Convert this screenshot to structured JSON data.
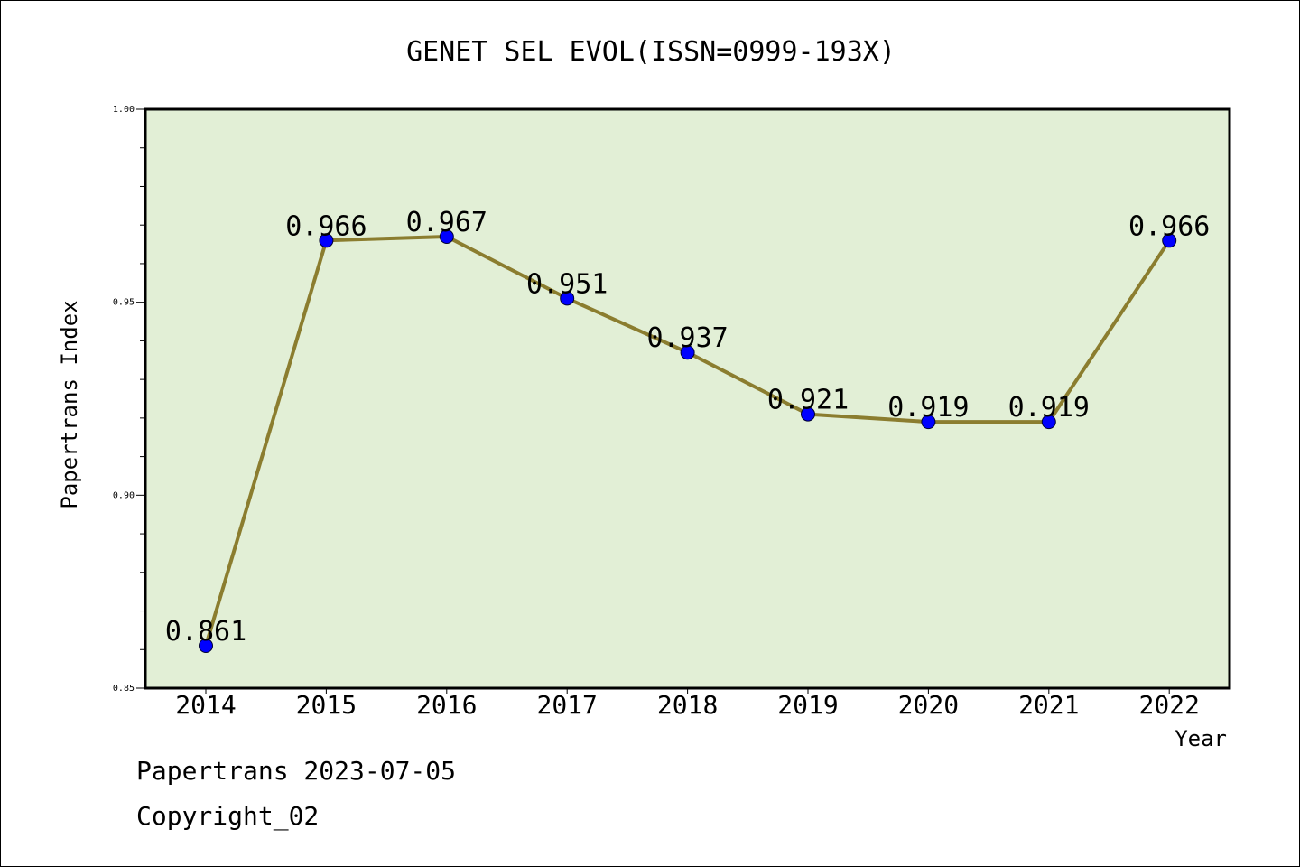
{
  "chart_data": {
    "type": "line",
    "title": "GENET SEL EVOL(ISSN=0999-193X)",
    "xlabel": "Year",
    "ylabel": "Papertrans Index",
    "categories": [
      "2014",
      "2015",
      "2016",
      "2017",
      "2018",
      "2019",
      "2020",
      "2021",
      "2022"
    ],
    "values": [
      0.861,
      0.966,
      0.967,
      0.951,
      0.937,
      0.921,
      0.919,
      0.919,
      0.966
    ],
    "data_labels": [
      "0.861",
      "0.966",
      "0.967",
      "0.951",
      "0.937",
      "0.921",
      "0.919",
      "0.919",
      "0.966"
    ],
    "ylim": [
      0.85,
      1.0
    ],
    "yticks": [
      0.85,
      0.9,
      0.95,
      1.0
    ],
    "ytick_labels": [
      "0.85",
      "0.90",
      "0.95",
      "1.00"
    ],
    "grid": false,
    "colors": {
      "plot_background": "#e2efd6",
      "line": "#8b7d2f",
      "marker": "#0000ff"
    }
  },
  "footer": {
    "line1": "Papertrans 2023-07-05",
    "line2": "Copyright_02"
  }
}
